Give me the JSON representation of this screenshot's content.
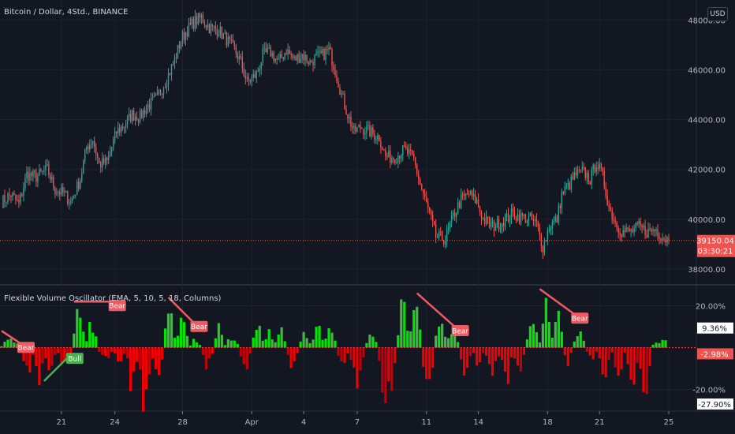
{
  "header": {
    "symbol_title": "Bitcoin / Dollar, 4Std., BINANCE",
    "currency_label": "USD"
  },
  "price_pane": {
    "y_ticks": [
      "48000.00",
      "46000.00",
      "44000.00",
      "42000.00",
      "40000.00",
      "38000.00"
    ],
    "y_tick_values": [
      48000,
      46000,
      44000,
      42000,
      40000,
      38000
    ],
    "ylim": [
      37400,
      48800
    ],
    "last_price": "39150.04",
    "last_price_value": 39150,
    "countdown": "03:30:21",
    "colors": {
      "up": "#26a69a",
      "down": "#ef5350",
      "last_price_line": "#ef5350"
    }
  },
  "oscillator": {
    "title": "Flexible Volume Oscillator (EMA, 5, 10, 5, 18, Columns)",
    "y_ticks": [
      "20.00%",
      "-20.00%"
    ],
    "y_tick_values": [
      20,
      -20
    ],
    "hidden_tick_value": 0,
    "ylim": [
      -30,
      30
    ],
    "labels": {
      "value_a": "9.36%",
      "value_b": "-2.98%",
      "value_c": "-27.90%"
    },
    "label_values": {
      "value_a": 9.36,
      "value_b": -2.98,
      "value_c": -27.9
    },
    "colors": {
      "positive": "#00e600",
      "positive_dark": "#4caf50",
      "negative": "#f00000",
      "negative_dark": "#c2000a",
      "bear": "#f05a63",
      "bull": "#4caf50",
      "zero_line": "#f23645"
    }
  },
  "x_axis": {
    "ticks": [
      {
        "label": "21",
        "bar": 38
      },
      {
        "label": "24",
        "bar": 72
      },
      {
        "label": "28",
        "bar": 115
      },
      {
        "label": "Apr",
        "bar": 159
      },
      {
        "label": "4",
        "bar": 192
      },
      {
        "label": "7",
        "bar": 226
      },
      {
        "label": "11",
        "bar": 270
      },
      {
        "label": "14",
        "bar": 303
      },
      {
        "label": "18",
        "bar": 347
      },
      {
        "label": "21",
        "bar": 380
      },
      {
        "label": "25",
        "bar": 424
      }
    ]
  },
  "chart_data": {
    "type": "candlestick",
    "timeframe": "4h",
    "bar_count": 424,
    "price_anchors": [
      [
        0,
        40700
      ],
      [
        6,
        41000
      ],
      [
        11,
        40600
      ],
      [
        16,
        41800
      ],
      [
        22,
        41700
      ],
      [
        29,
        42000
      ],
      [
        34,
        41200
      ],
      [
        40,
        41000
      ],
      [
        44,
        40700
      ],
      [
        50,
        41600
      ],
      [
        54,
        42900
      ],
      [
        58,
        43200
      ],
      [
        62,
        42200
      ],
      [
        67,
        42300
      ],
      [
        73,
        43500
      ],
      [
        78,
        43800
      ],
      [
        83,
        44200
      ],
      [
        88,
        44100
      ],
      [
        92,
        44500
      ],
      [
        98,
        44800
      ],
      [
        104,
        45500
      ],
      [
        110,
        46400
      ],
      [
        114,
        47200
      ],
      [
        118,
        47600
      ],
      [
        122,
        47900
      ],
      [
        127,
        48100
      ],
      [
        132,
        47700
      ],
      [
        138,
        47600
      ],
      [
        143,
        47200
      ],
      [
        148,
        46800
      ],
      [
        152,
        46300
      ],
      [
        156,
        45500
      ],
      [
        162,
        45800
      ],
      [
        166,
        46600
      ],
      [
        171,
        46700
      ],
      [
        176,
        46300
      ],
      [
        181,
        46800
      ],
      [
        186,
        46400
      ],
      [
        191,
        46600
      ],
      [
        196,
        46300
      ],
      [
        200,
        46500
      ],
      [
        204,
        46600
      ],
      [
        208,
        46800
      ],
      [
        212,
        46000
      ],
      [
        216,
        45000
      ],
      [
        220,
        44200
      ],
      [
        224,
        43500
      ],
      [
        228,
        43700
      ],
      [
        234,
        43500
      ],
      [
        240,
        43300
      ],
      [
        244,
        42500
      ],
      [
        250,
        42500
      ],
      [
        256,
        42800
      ],
      [
        262,
        42400
      ],
      [
        266,
        41400
      ],
      [
        272,
        40200
      ],
      [
        276,
        39300
      ],
      [
        282,
        39200
      ],
      [
        287,
        40100
      ],
      [
        292,
        40800
      ],
      [
        297,
        41000
      ],
      [
        302,
        40700
      ],
      [
        306,
        40000
      ],
      [
        312,
        39700
      ],
      [
        318,
        39900
      ],
      [
        324,
        40200
      ],
      [
        330,
        40100
      ],
      [
        336,
        40000
      ],
      [
        340,
        39800
      ],
      [
        344,
        38900
      ],
      [
        348,
        39700
      ],
      [
        353,
        40000
      ],
      [
        356,
        41000
      ],
      [
        360,
        41300
      ],
      [
        365,
        41800
      ],
      [
        370,
        41900
      ],
      [
        374,
        41600
      ],
      [
        378,
        42300
      ],
      [
        382,
        41700
      ],
      [
        386,
        40500
      ],
      [
        390,
        39900
      ],
      [
        394,
        39500
      ],
      [
        400,
        39500
      ],
      [
        405,
        39700
      ],
      [
        410,
        39500
      ],
      [
        416,
        39600
      ],
      [
        420,
        39300
      ],
      [
        424,
        39150
      ]
    ],
    "oscillator_shape": {
      "cycles": [
        [
          0,
          14,
          4
        ],
        [
          14,
          22,
          -16
        ],
        [
          22,
          28,
          -22
        ],
        [
          28,
          36,
          -12
        ],
        [
          36,
          46,
          -8
        ],
        [
          46,
          54,
          22
        ],
        [
          54,
          62,
          14
        ],
        [
          62,
          72,
          -6
        ],
        [
          72,
          80,
          -10
        ],
        [
          80,
          88,
          -20
        ],
        [
          88,
          96,
          -30
        ],
        [
          96,
          104,
          -14
        ],
        [
          104,
          112,
          22
        ],
        [
          112,
          120,
          14
        ],
        [
          120,
          128,
          4
        ],
        [
          128,
          136,
          -10
        ],
        [
          136,
          142,
          12
        ],
        [
          142,
          152,
          6
        ],
        [
          152,
          160,
          -12
        ],
        [
          160,
          168,
          14
        ],
        [
          168,
          174,
          8
        ],
        [
          174,
          182,
          10
        ],
        [
          182,
          190,
          -10
        ],
        [
          190,
          198,
          8
        ],
        [
          198,
          206,
          10
        ],
        [
          206,
          214,
          12
        ],
        [
          214,
          222,
          -12
        ],
        [
          222,
          232,
          -18
        ],
        [
          232,
          240,
          8
        ],
        [
          240,
          252,
          -30
        ],
        [
          252,
          260,
          24
        ],
        [
          260,
          268,
          20
        ],
        [
          268,
          276,
          -22
        ],
        [
          276,
          284,
          16
        ],
        [
          284,
          292,
          12
        ],
        [
          292,
          300,
          -14
        ],
        [
          300,
          308,
          -10
        ],
        [
          308,
          318,
          -12
        ],
        [
          318,
          326,
          -18
        ],
        [
          326,
          334,
          -12
        ],
        [
          334,
          344,
          12
        ],
        [
          344,
          350,
          24
        ],
        [
          350,
          358,
          18
        ],
        [
          358,
          364,
          -8
        ],
        [
          364,
          372,
          8
        ],
        [
          372,
          380,
          -6
        ],
        [
          380,
          388,
          -14
        ],
        [
          388,
          398,
          -12
        ],
        [
          398,
          406,
          -22
        ],
        [
          406,
          414,
          -28
        ],
        [
          414,
          420,
          4
        ],
        [
          420,
          424,
          9
        ]
      ]
    },
    "divergences": [
      {
        "kind": "Bear",
        "from_bar": 0,
        "from_value": 8,
        "to_bar": 12,
        "to_value": 2
      },
      {
        "kind": "Bull",
        "from_bar": 27,
        "from_value": -16,
        "to_bar": 43,
        "to_value": -4
      },
      {
        "kind": "Bear",
        "from_bar": 46,
        "from_value": 22,
        "to_bar": 70,
        "to_value": 22
      },
      {
        "kind": "Bear",
        "from_bar": 106,
        "from_value": 24,
        "to_bar": 122,
        "to_value": 12
      },
      {
        "kind": "Bear",
        "from_bar": 264,
        "from_value": 26,
        "to_bar": 288,
        "to_value": 10
      },
      {
        "kind": "Bear",
        "from_bar": 342,
        "from_value": 28,
        "to_bar": 364,
        "to_value": 16
      }
    ]
  }
}
